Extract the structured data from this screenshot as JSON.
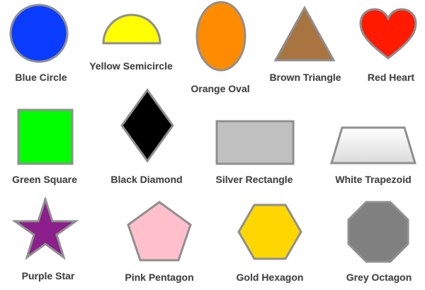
{
  "shapes": [
    {
      "label": "Blue Circle",
      "color": "#0a3cff",
      "icon": "circle-icon"
    },
    {
      "label": "Yellow Semicircle",
      "color": "#ffff00",
      "icon": "semicircle-icon"
    },
    {
      "label": "Orange Oval",
      "color": "#ff8c00",
      "icon": "oval-icon"
    },
    {
      "label": "Brown Triangle",
      "color": "#a87440",
      "icon": "triangle-icon"
    },
    {
      "label": "Red Heart",
      "color": "#ff1a00",
      "icon": "heart-icon"
    },
    {
      "label": "Green Square",
      "color": "#00ff00",
      "icon": "square-icon"
    },
    {
      "label": "Black Diamond",
      "color": "#000000",
      "icon": "diamond-icon"
    },
    {
      "label": "Silver Rectangle",
      "color": "#c0c0c0",
      "icon": "rectangle-icon"
    },
    {
      "label": "White Trapezoid",
      "color": "#ffffff",
      "icon": "trapezoid-icon"
    },
    {
      "label": "Purple Star",
      "color": "#8b1f8b",
      "icon": "star-icon"
    },
    {
      "label": "Pink Pentagon",
      "color": "#ffc0cb",
      "icon": "pentagon-icon"
    },
    {
      "label": "Gold Hexagon",
      "color": "#ffd700",
      "icon": "hexagon-icon"
    },
    {
      "label": "Grey Octagon",
      "color": "#808080",
      "icon": "octagon-icon"
    }
  ]
}
